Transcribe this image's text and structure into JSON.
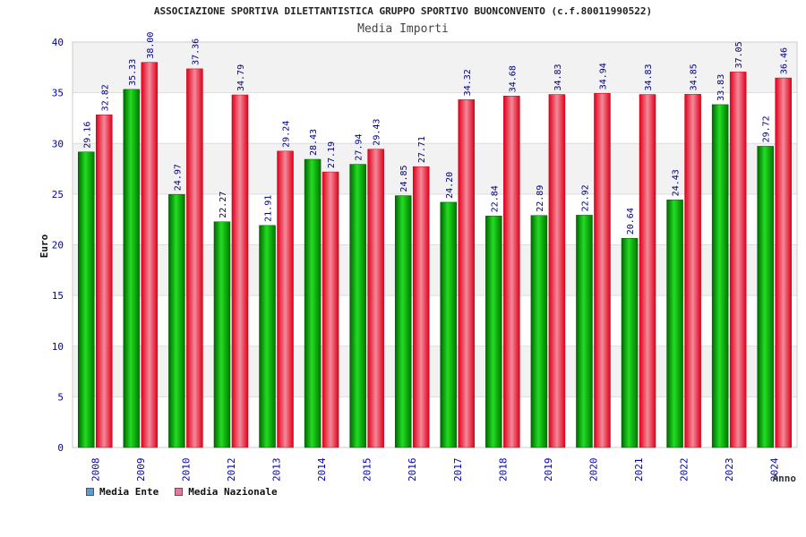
{
  "chart_data": {
    "type": "bar",
    "title": "ASSOCIAZIONE SPORTIVA DILETTANTISTICA GRUPPO SPORTIVO BUONCONVENTO (c.f.80011990522)",
    "subtitle": "Media Importi",
    "xlabel": "Anno",
    "ylabel": "Euro",
    "ylim": [
      0,
      40
    ],
    "yticks": [
      "0",
      "5",
      "10",
      "15",
      "20",
      "25",
      "30",
      "35",
      "40"
    ],
    "categories": [
      "2008",
      "2009",
      "2010",
      "2012",
      "2013",
      "2014",
      "2015",
      "2016",
      "2017",
      "2018",
      "2019",
      "2020",
      "2021",
      "2022",
      "2023",
      "2024"
    ],
    "series": [
      {
        "name": "Media Ente",
        "color": "#00c000",
        "legend_color": "#5b9bd5",
        "values": [
          29.16,
          35.33,
          24.97,
          22.27,
          21.91,
          28.43,
          27.94,
          24.85,
          24.2,
          22.84,
          22.89,
          22.92,
          20.64,
          24.43,
          33.83,
          29.72
        ],
        "labels": [
          "29.16",
          "35.33",
          "24.97",
          "22.27",
          "21.91",
          "28.43",
          "27.94",
          "24.85",
          "24.20",
          "22.84",
          "22.89",
          "22.92",
          "20.64",
          "24.43",
          "33.83",
          "29.72"
        ]
      },
      {
        "name": "Media Nazionale",
        "color": "#e8001c",
        "legend_color": "#e07ba0",
        "values": [
          32.82,
          38.0,
          37.36,
          34.79,
          29.24,
          27.19,
          29.43,
          27.71,
          34.32,
          34.68,
          34.83,
          34.94,
          34.83,
          34.85,
          37.05,
          36.46
        ],
        "labels": [
          "32.82",
          "38.00",
          "37.36",
          "34.79",
          "29.24",
          "27.19",
          "29.43",
          "27.71",
          "34.32",
          "34.68",
          "34.83",
          "34.94",
          "34.83",
          "34.85",
          "37.05",
          "36.46"
        ]
      }
    ],
    "grid": true,
    "legend_position": "bottom-left"
  }
}
